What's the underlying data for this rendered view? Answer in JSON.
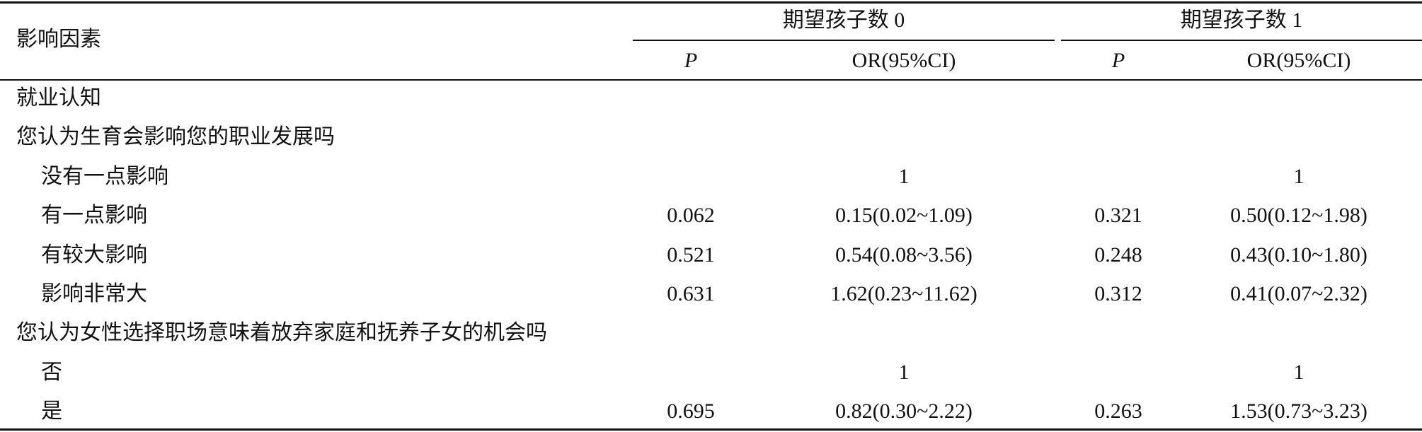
{
  "table": {
    "header": {
      "factor": "影响因素",
      "groups": [
        {
          "title": "期望孩子数 0",
          "columns": [
            "P",
            "OR(95%CI)"
          ]
        },
        {
          "title": "期望孩子数 1",
          "columns": [
            "P",
            "OR(95%CI)"
          ]
        }
      ]
    },
    "category": "就业认知",
    "questions": [
      {
        "question": "您认为生育会影响您的职业发展吗",
        "options": [
          {
            "label": "没有一点影响",
            "or0": "1",
            "or1": "1"
          },
          {
            "label": "有一点影响",
            "p0": "0.062",
            "or0": "0.15(0.02~1.09)",
            "p1": "0.321",
            "or1": "0.50(0.12~1.98)"
          },
          {
            "label": "有较大影响",
            "p0": "0.521",
            "or0": "0.54(0.08~3.56)",
            "p1": "0.248",
            "or1": "0.43(0.10~1.80)"
          },
          {
            "label": "影响非常大",
            "p0": "0.631",
            "or0": "1.62(0.23~11.62)",
            "p1": "0.312",
            "or1": "0.41(0.07~2.32)"
          }
        ]
      },
      {
        "question": "您认为女性选择职场意味着放弃家庭和抚养子女的机会吗",
        "options": [
          {
            "label": "否",
            "or0": "1",
            "or1": "1"
          },
          {
            "label": "是",
            "p0": "0.695",
            "or0": "0.82(0.30~2.22)",
            "p1": "0.263",
            "or1": "1.53(0.73~3.23)"
          }
        ]
      }
    ]
  }
}
